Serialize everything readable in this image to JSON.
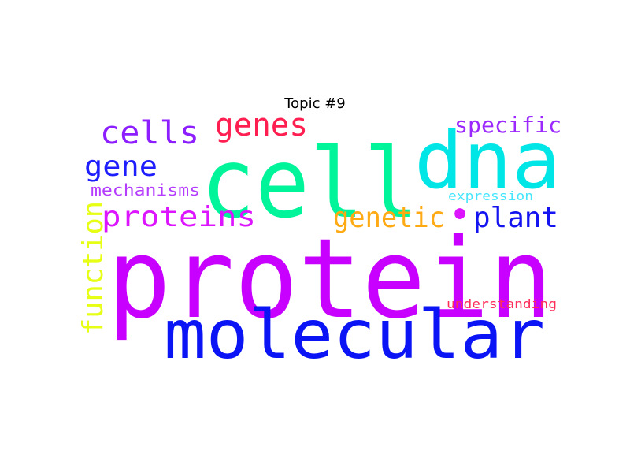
{
  "title": "Topic #9",
  "words": [
    {
      "text": "protein",
      "color": "#c800ff"
    },
    {
      "text": "molecular",
      "color": "#0a14f5"
    },
    {
      "text": "cell",
      "color": "#00f59b"
    },
    {
      "text": "dna",
      "color": "#00e6e6"
    },
    {
      "text": "cells",
      "color": "#8c1eff"
    },
    {
      "text": "genes",
      "color": "#ff1e50"
    },
    {
      "text": "specific",
      "color": "#9b28ff"
    },
    {
      "text": "gene",
      "color": "#1e1eff"
    },
    {
      "text": "proteins",
      "color": "#dc14ff"
    },
    {
      "text": "genetic",
      "color": "#ffaa14"
    },
    {
      "text": "plant",
      "color": "#1414f0"
    },
    {
      "text": "mechanisms",
      "color": "#b43cff"
    },
    {
      "text": "expression",
      "color": "#46e6ff"
    },
    {
      "text": "function",
      "color": "#e6ff14"
    },
    {
      "text": "understanding",
      "color": "#ff2d5a"
    },
    {
      "text": "•",
      "color": "#dc14ff"
    }
  ]
}
